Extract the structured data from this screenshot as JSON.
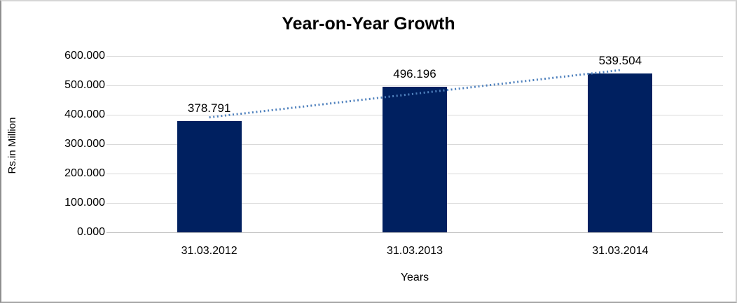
{
  "window": {
    "background": "#ffffff",
    "border_colors": {
      "top": "#d6d6d6",
      "right": "#cfcfcf",
      "bottom": "#a6a6a6",
      "left": "#8f8f8f"
    }
  },
  "chart_data": {
    "type": "bar",
    "title": "Year-on-Year Growth",
    "xlabel": "Years",
    "ylabel": "Rs.in Million",
    "categories": [
      "31.03.2012",
      "31.03.2013",
      "31.03.2014"
    ],
    "values": [
      378.791,
      496.196,
      539.504
    ],
    "data_labels": [
      "378.791",
      "496.196",
      "539.504"
    ],
    "y_ticks": [
      {
        "label": "600.000",
        "value": 600
      },
      {
        "label": "500.000",
        "value": 500
      },
      {
        "label": "400.000",
        "value": 400
      },
      {
        "label": "300.000",
        "value": 300
      },
      {
        "label": "200.000",
        "value": 200
      },
      {
        "label": "100.000",
        "value": 100
      },
      {
        "label": "0.000",
        "value": 0
      }
    ],
    "ylim": [
      0,
      600
    ],
    "bar_color": "#002060",
    "gridlines": true,
    "gridline_color": "#d9d9d9",
    "legend": "none",
    "trendline": {
      "type": "linear",
      "style": "dotted",
      "color": "#4F81BD",
      "fit_values_at_categories": [
        391.14,
        471.5,
        551.85
      ]
    }
  }
}
